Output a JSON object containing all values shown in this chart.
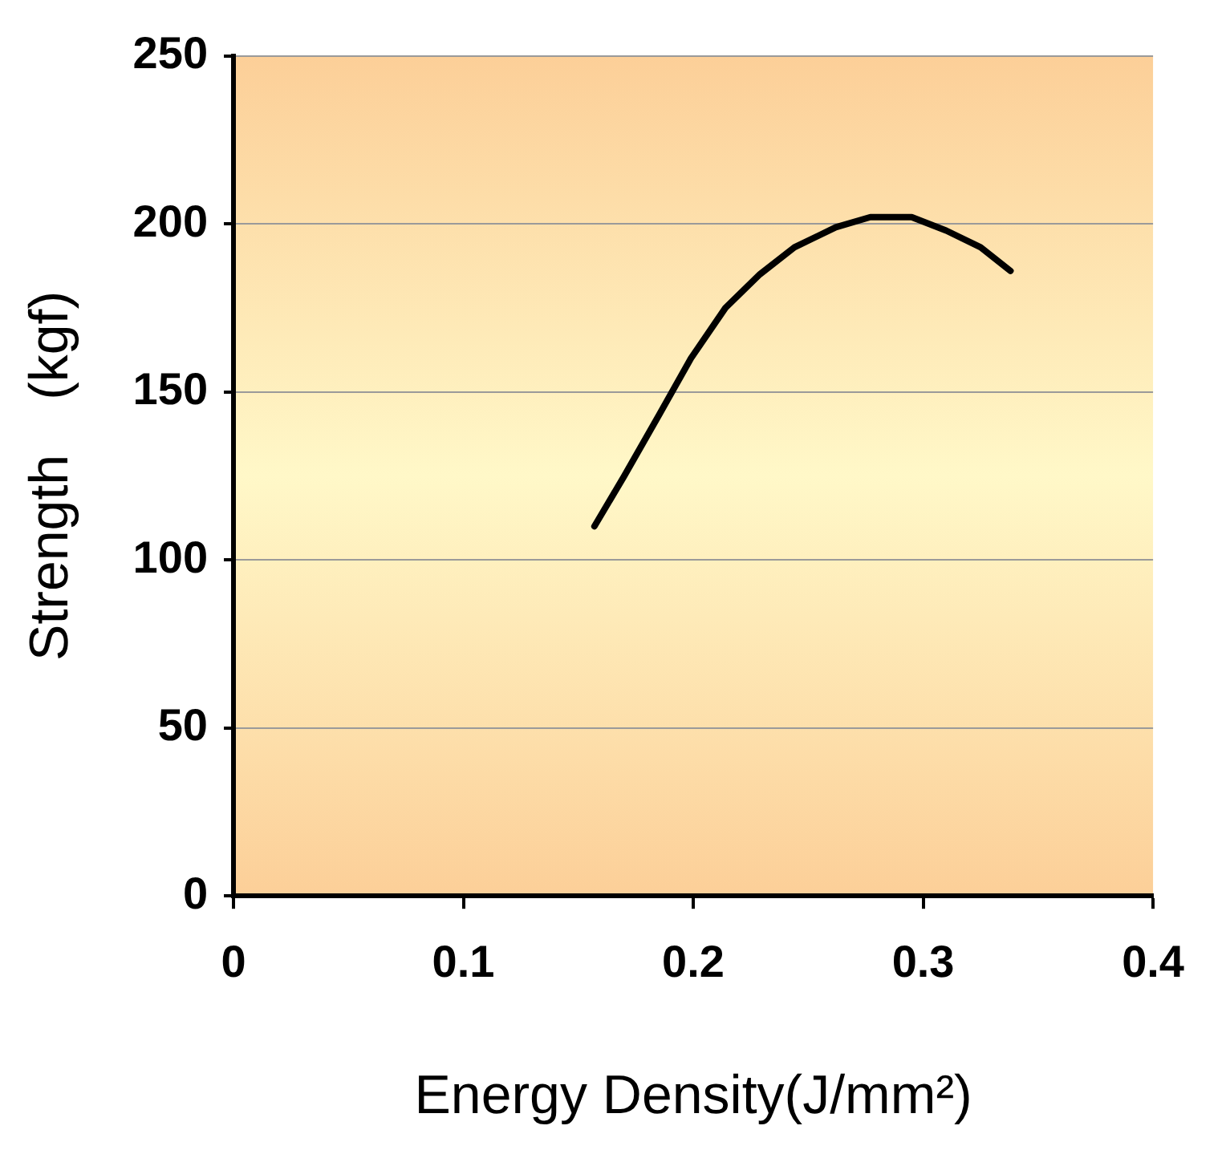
{
  "chart_data": {
    "type": "line",
    "xlabel": "Energy Density(J/mm²)",
    "ylabel": "Strength　(kgf)",
    "x": [
      0.157,
      0.17,
      0.185,
      0.199,
      0.214,
      0.229,
      0.244,
      0.262,
      0.277,
      0.295,
      0.31,
      0.325,
      0.338
    ],
    "series": [
      {
        "color": "#000000",
        "values": [
          110,
          125,
          143,
          160,
          175,
          185,
          193,
          199,
          202,
          202,
          198,
          193,
          186
        ]
      }
    ],
    "xlim": [
      0,
      0.4
    ],
    "xticks": [
      0,
      0.1,
      0.2,
      0.3,
      0.4
    ],
    "ylim": [
      0,
      250
    ],
    "yticks": [
      0,
      50,
      100,
      150,
      200,
      250
    ],
    "grid": "y",
    "legend": false,
    "marker": "none",
    "line_style": "solid"
  }
}
